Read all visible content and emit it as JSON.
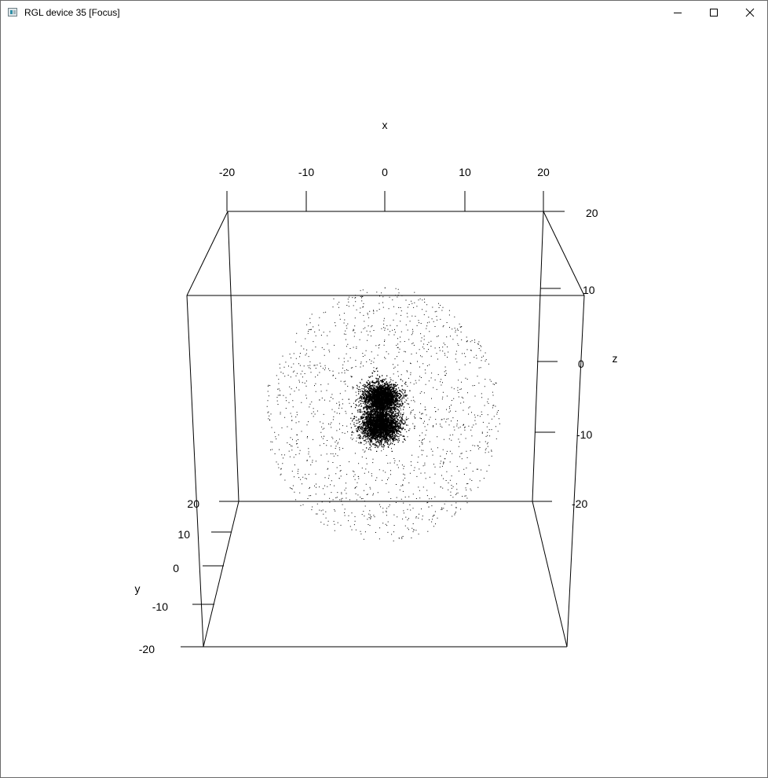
{
  "window": {
    "title": "RGL device 35 [Focus]",
    "buttons": {
      "minimize": "minimize",
      "maximize": "maximize",
      "close": "close"
    }
  },
  "plot": {
    "axis_labels": {
      "x": "x",
      "y": "y",
      "z": "z"
    },
    "x_ticks": [
      "-20",
      "-10",
      "0",
      "10",
      "20"
    ],
    "y_ticks": [
      "20",
      "10",
      "0",
      "-10",
      "-20"
    ],
    "z_ticks": [
      "20",
      "10",
      "0",
      "-10",
      "-20"
    ],
    "point_color": "#000000",
    "box_color": "#000000"
  },
  "chart_data": {
    "type": "scatter",
    "title": "",
    "xlabel": "x",
    "ylabel": "y",
    "zlabel": "z",
    "xlim": [
      -20,
      20
    ],
    "ylim": [
      -20,
      20
    ],
    "zlim": [
      -20,
      20
    ],
    "grid": false,
    "legend": "none",
    "description_of_points": "dense 3D point cloud centred near (0,0,-5) with two dense lobes along z and a sparse diffuse halo"
  }
}
